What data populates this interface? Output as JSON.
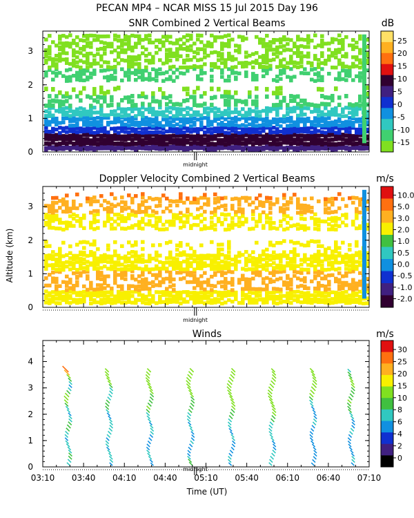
{
  "header": {
    "title": "PECAN MP4 – NCAR MISS  15 Jul 2015 Day 196"
  },
  "chart_data": [
    {
      "type": "heatmap",
      "title": "SNR Combined 2 Vertical Beams",
      "unit": "dB",
      "ylabel": "",
      "ylim": [
        0,
        3.6
      ],
      "yticks": [
        "0",
        "1",
        "2",
        "3"
      ],
      "midnight_label": "midnight",
      "colorbar": {
        "labels": [
          "25",
          "20",
          "15",
          "10",
          "5",
          "0",
          "-5",
          "-10",
          "-15"
        ],
        "colors": [
          "#ffe066",
          "#ffb020",
          "#ff7010",
          "#e01010",
          "#300030",
          "#402080",
          "#1030d0",
          "#1090e0",
          "#30c8c0",
          "#40d070",
          "#80e020"
        ]
      },
      "layers": [
        {
          "from": 0.05,
          "to": 0.2,
          "color": "#402080",
          "coverage": 1.0
        },
        {
          "from": 0.2,
          "to": 0.55,
          "color": "#300030",
          "coverage": 1.0
        },
        {
          "from": 0.55,
          "to": 0.75,
          "color": "#1030d0",
          "coverage": 0.95
        },
        {
          "from": 0.75,
          "to": 1.05,
          "color": "#1090e0",
          "coverage": 0.85
        },
        {
          "from": 1.05,
          "to": 1.35,
          "color": "#30c8c0",
          "coverage": 0.75
        },
        {
          "from": 1.35,
          "to": 1.7,
          "color": "#40d070",
          "coverage": 0.5
        },
        {
          "from": 1.7,
          "to": 1.95,
          "color": "#80e020",
          "coverage": 0.25
        },
        {
          "from": 2.1,
          "to": 2.5,
          "color": "#40d070",
          "coverage": 0.45
        },
        {
          "from": 2.5,
          "to": 3.0,
          "color": "#80e020",
          "coverage": 0.55
        },
        {
          "from": 3.0,
          "to": 3.5,
          "color": "#80e020",
          "coverage": 0.55
        }
      ]
    },
    {
      "type": "heatmap",
      "title": "Doppler Velocity Combined 2 Vertical Beams",
      "unit": "m/s",
      "ylabel": "Altitude (km)",
      "ylim": [
        0,
        3.6
      ],
      "yticks": [
        "0",
        "1",
        "2",
        "3"
      ],
      "midnight_label": "midnight",
      "colorbar": {
        "labels": [
          "10.0",
          "5.0",
          "3.0",
          "2.0",
          "1.0",
          "0.5",
          "0.0",
          "-0.5",
          "-1.0",
          "-2.0"
        ],
        "colors": [
          "#e01010",
          "#ff7010",
          "#ffb020",
          "#f8f000",
          "#40c040",
          "#30c8c0",
          "#1090e0",
          "#1030d0",
          "#402080",
          "#300030"
        ]
      },
      "layers": [
        {
          "from": 0.1,
          "to": 0.5,
          "color": "#f8f000",
          "coverage": 0.9
        },
        {
          "from": 0.5,
          "to": 1.1,
          "color": "#ffb020",
          "coverage": 0.55
        },
        {
          "from": 1.1,
          "to": 1.6,
          "color": "#f8f000",
          "coverage": 0.8
        },
        {
          "from": 1.6,
          "to": 2.0,
          "color": "#f8f000",
          "coverage": 0.3
        },
        {
          "from": 2.3,
          "to": 2.8,
          "color": "#f8f000",
          "coverage": 0.5
        },
        {
          "from": 2.8,
          "to": 3.3,
          "color": "#ffb020",
          "coverage": 0.45
        },
        {
          "from": 3.2,
          "to": 3.4,
          "color": "#ff7010",
          "coverage": 0.15
        }
      ]
    },
    {
      "type": "scatter",
      "title": "Winds",
      "unit": "m/s",
      "xlabel": "Time (UT)",
      "ylim": [
        0,
        4.8
      ],
      "yticks": [
        "0",
        "1",
        "2",
        "3",
        "4"
      ],
      "xticks": [
        "03:10",
        "03:40",
        "04:10",
        "04:40",
        "05:10",
        "05:40",
        "06:10",
        "06:40",
        "07:10"
      ],
      "midnight_label": "midnight",
      "colorbar": {
        "labels": [
          "30",
          "25",
          "20",
          "15",
          "10",
          "8",
          "6",
          "4",
          "2",
          "0"
        ],
        "colors": [
          "#e01010",
          "#ff7010",
          "#ffb020",
          "#f8f000",
          "#80e020",
          "#40c040",
          "#30c8c0",
          "#1090e0",
          "#1030d0",
          "#402080",
          "#000000"
        ]
      },
      "profile_times_min": [
        20,
        50,
        80,
        110,
        140,
        170,
        200,
        228
      ],
      "profiles": [
        {
          "speeds": [
            6,
            7,
            8,
            8,
            7,
            6,
            7,
            6,
            5,
            6,
            7,
            8,
            9,
            8,
            7,
            6,
            5,
            6,
            7,
            8,
            10,
            14,
            12,
            9,
            6,
            5,
            6,
            8,
            12,
            22,
            28
          ]
        },
        {
          "speeds": [
            5,
            6,
            7,
            6,
            6,
            5,
            6,
            6,
            5,
            6,
            7,
            7,
            6,
            6,
            6,
            5,
            5,
            6,
            8,
            9,
            8,
            7,
            6,
            6,
            7,
            9,
            11,
            12,
            12,
            11,
            10
          ]
        },
        {
          "speeds": [
            4,
            5,
            6,
            6,
            6,
            5,
            5,
            4,
            5,
            5,
            6,
            7,
            6,
            5,
            6,
            6,
            7,
            8,
            10,
            9,
            8,
            8,
            9,
            10,
            12,
            13,
            14,
            12,
            11,
            10,
            10
          ]
        },
        {
          "speeds": [
            9,
            8,
            7,
            4,
            4,
            5,
            5,
            6,
            5,
            4,
            5,
            6,
            6,
            5,
            6,
            7,
            7,
            8,
            9,
            8,
            8,
            9,
            10,
            11,
            12,
            13,
            14,
            13,
            12,
            12,
            11
          ]
        },
        {
          "speeds": [
            5,
            6,
            6,
            5,
            5,
            4,
            5,
            5,
            6,
            6,
            5,
            5,
            6,
            6,
            7,
            8,
            9,
            9,
            10,
            11,
            12,
            12,
            13,
            13,
            14,
            14,
            13,
            13,
            12,
            12,
            11
          ]
        },
        {
          "speeds": [
            6,
            6,
            7,
            6,
            6,
            5,
            5,
            5,
            6,
            6,
            6,
            6,
            7,
            7,
            8,
            9,
            10,
            11,
            12,
            13,
            13,
            14,
            14,
            13,
            13,
            12,
            12,
            11,
            11,
            11,
            10
          ]
        },
        {
          "speeds": [
            4,
            5,
            5,
            5,
            5,
            4,
            4,
            5,
            5,
            5,
            5,
            4,
            5,
            6,
            6,
            5,
            4,
            4,
            5,
            6,
            7,
            9,
            11,
            12,
            14,
            14,
            13,
            13,
            12,
            12,
            11
          ]
        },
        {
          "speeds": [
            5,
            6,
            6,
            5,
            5,
            5,
            4,
            4,
            5,
            5,
            6,
            6,
            5,
            5,
            5,
            6,
            7,
            8,
            8,
            9,
            10,
            9,
            8,
            8,
            9,
            10,
            11,
            10,
            9,
            8,
            6
          ]
        }
      ]
    }
  ]
}
